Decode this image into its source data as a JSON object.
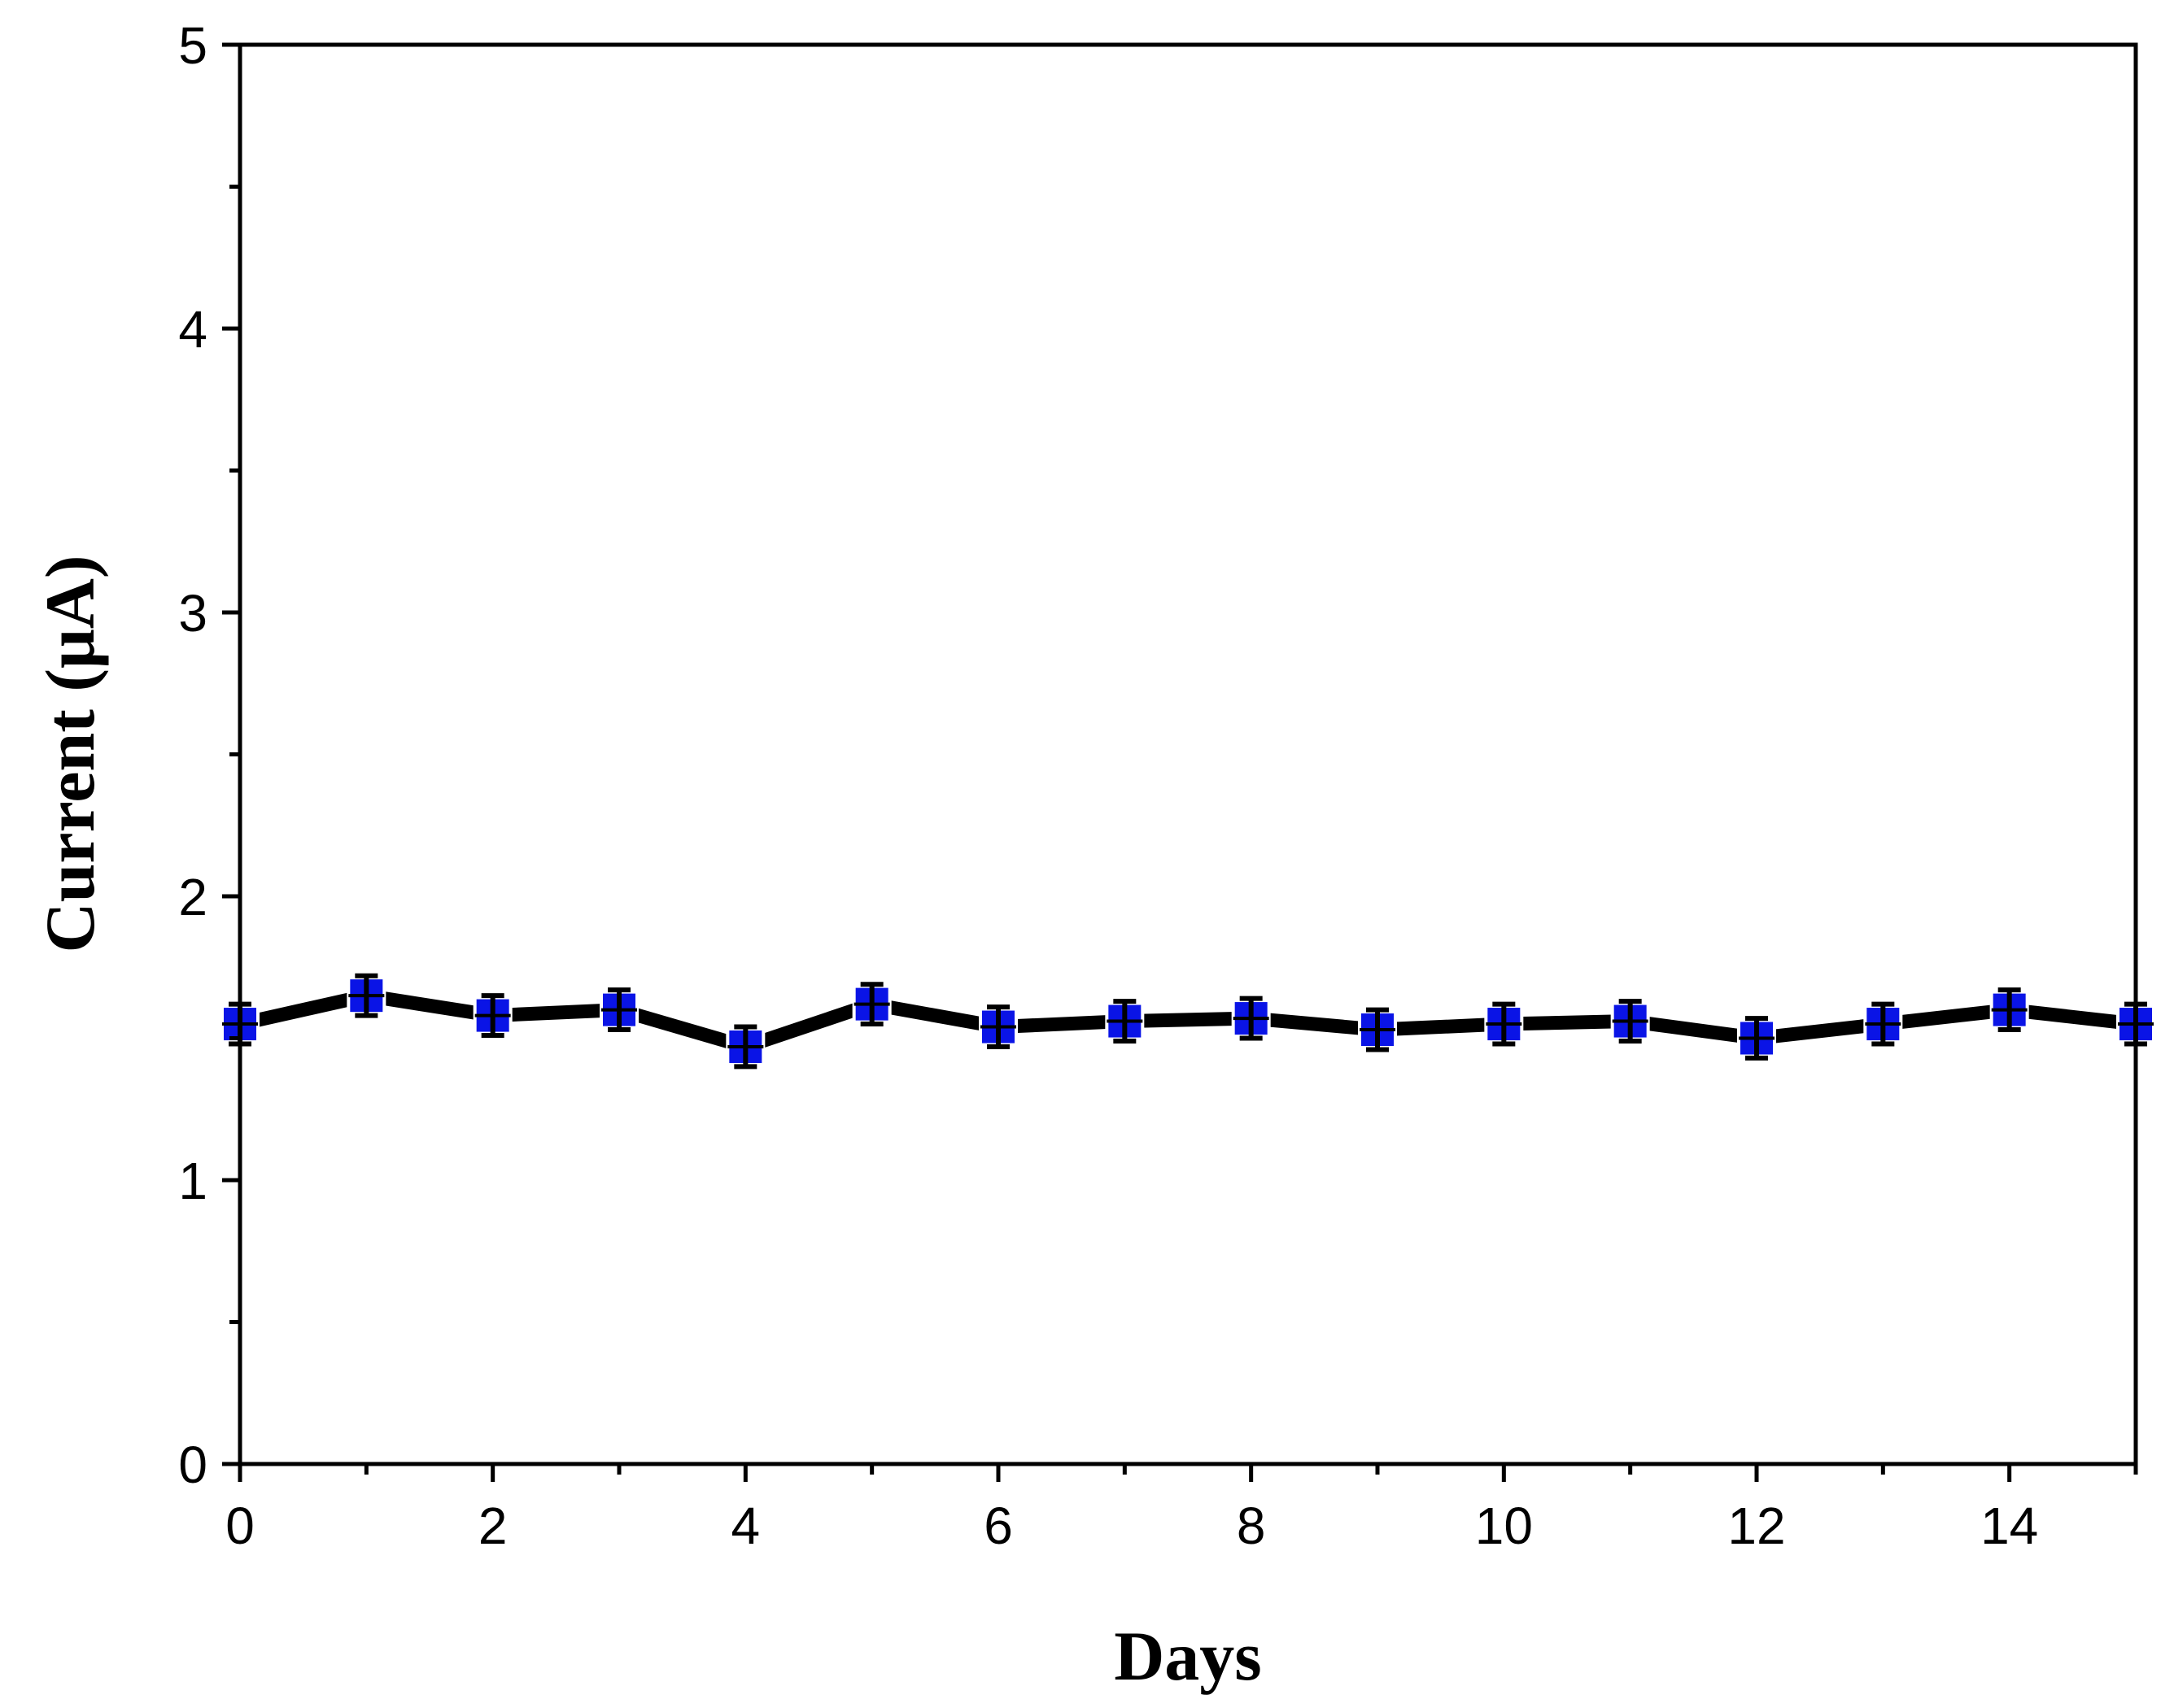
{
  "chart_data": {
    "type": "line",
    "title": "",
    "xlabel": "Days",
    "ylabel": "Current (μA)",
    "xlim": [
      0,
      15
    ],
    "ylim": [
      0,
      5
    ],
    "x_ticks": [
      0,
      2,
      4,
      6,
      8,
      10,
      12,
      14
    ],
    "x_minor_ticks": [
      1,
      3,
      5,
      7,
      9,
      11,
      13,
      15
    ],
    "y_ticks": [
      0,
      1,
      2,
      3,
      4,
      5
    ],
    "y_minor_ticks": [
      0.5,
      1.5,
      2.5,
      3.5,
      4.5
    ],
    "grid": false,
    "series": [
      {
        "x": [
          0,
          1,
          2,
          3,
          4,
          5,
          6,
          7,
          8,
          9,
          10,
          11,
          12,
          13,
          14,
          15
        ],
        "y": [
          1.55,
          1.65,
          1.58,
          1.6,
          1.47,
          1.62,
          1.54,
          1.56,
          1.57,
          1.53,
          1.55,
          1.56,
          1.5,
          1.55,
          1.6,
          1.55
        ],
        "error": [
          0.07,
          0.07,
          0.07,
          0.07,
          0.07,
          0.07,
          0.07,
          0.07,
          0.07,
          0.07,
          0.07,
          0.07,
          0.07,
          0.07,
          0.07,
          0.07
        ],
        "marker": "square",
        "marker_color": "#0a14e6",
        "line_color": "#000000"
      }
    ]
  }
}
